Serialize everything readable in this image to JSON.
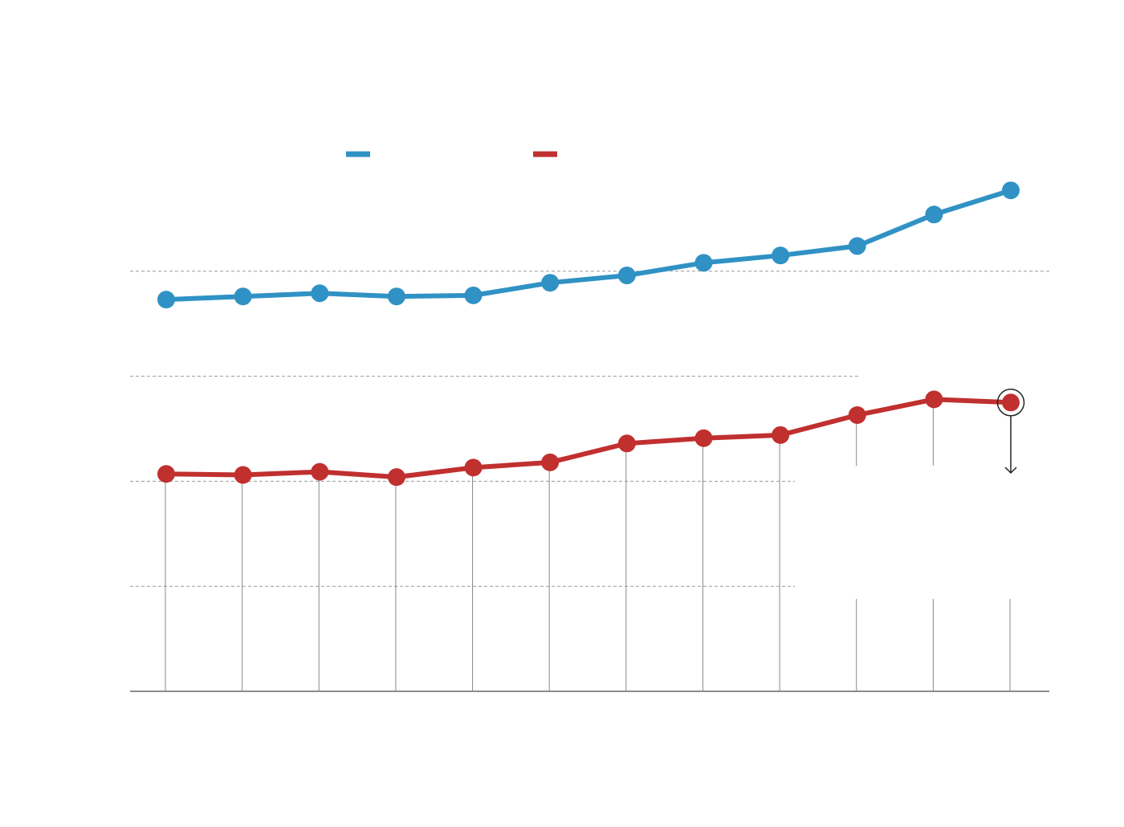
{
  "chart_data": {
    "type": "line",
    "categories": [
      null,
      null,
      null,
      null,
      null,
      null,
      null,
      null,
      null,
      null,
      null,
      null
    ],
    "series": [
      {
        "color": "#3092c4",
        "values": [
          3.73,
          3.76,
          3.79,
          3.76,
          3.77,
          3.89,
          3.96,
          4.08,
          4.15,
          4.24,
          4.54,
          4.77
        ]
      },
      {
        "color": "#c0302f",
        "values": [
          2.07,
          2.06,
          2.09,
          2.04,
          2.13,
          2.18,
          2.36,
          2.41,
          2.44,
          2.63,
          2.78,
          2.75
        ]
      }
    ],
    "ylim": [
      0,
      5
    ],
    "yticks": [
      0,
      1,
      2,
      3,
      4
    ],
    "grid": true
  }
}
